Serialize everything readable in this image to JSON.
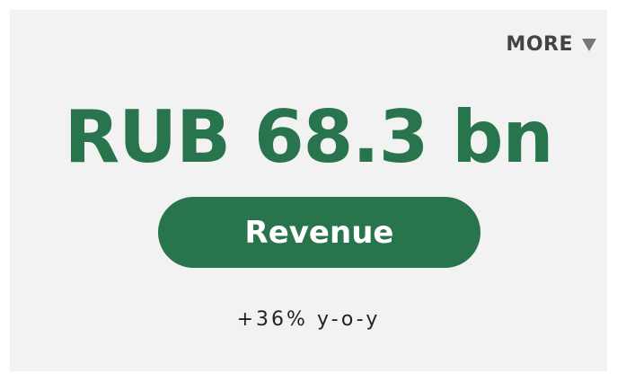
{
  "more": "MORE",
  "value": "RUB 68.3 bn",
  "label": "Revenue",
  "change": "+36% y-o-y"
}
